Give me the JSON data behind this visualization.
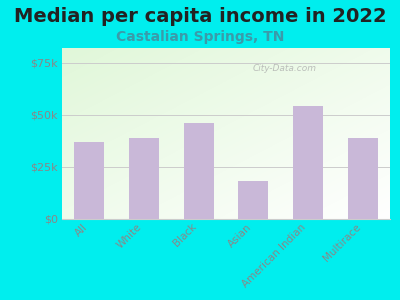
{
  "title": "Median per capita income in 2022",
  "subtitle": "Castalian Springs, TN",
  "categories": [
    "All",
    "White",
    "Black",
    "Asian",
    "American Indian",
    "Multirace"
  ],
  "values": [
    37000,
    39000,
    46000,
    18000,
    54000,
    39000
  ],
  "bar_color": "#c9b8d8",
  "title_fontsize": 14,
  "subtitle_fontsize": 10,
  "ylabel_ticks": [
    "$0",
    "$25k",
    "$50k",
    "$75k"
  ],
  "ytick_values": [
    0,
    25000,
    50000,
    75000
  ],
  "ylim": [
    0,
    82000
  ],
  "background_outer": "#00EEEE",
  "watermark": "City-Data.com",
  "tick_color": "#888888",
  "label_color": "#888888"
}
